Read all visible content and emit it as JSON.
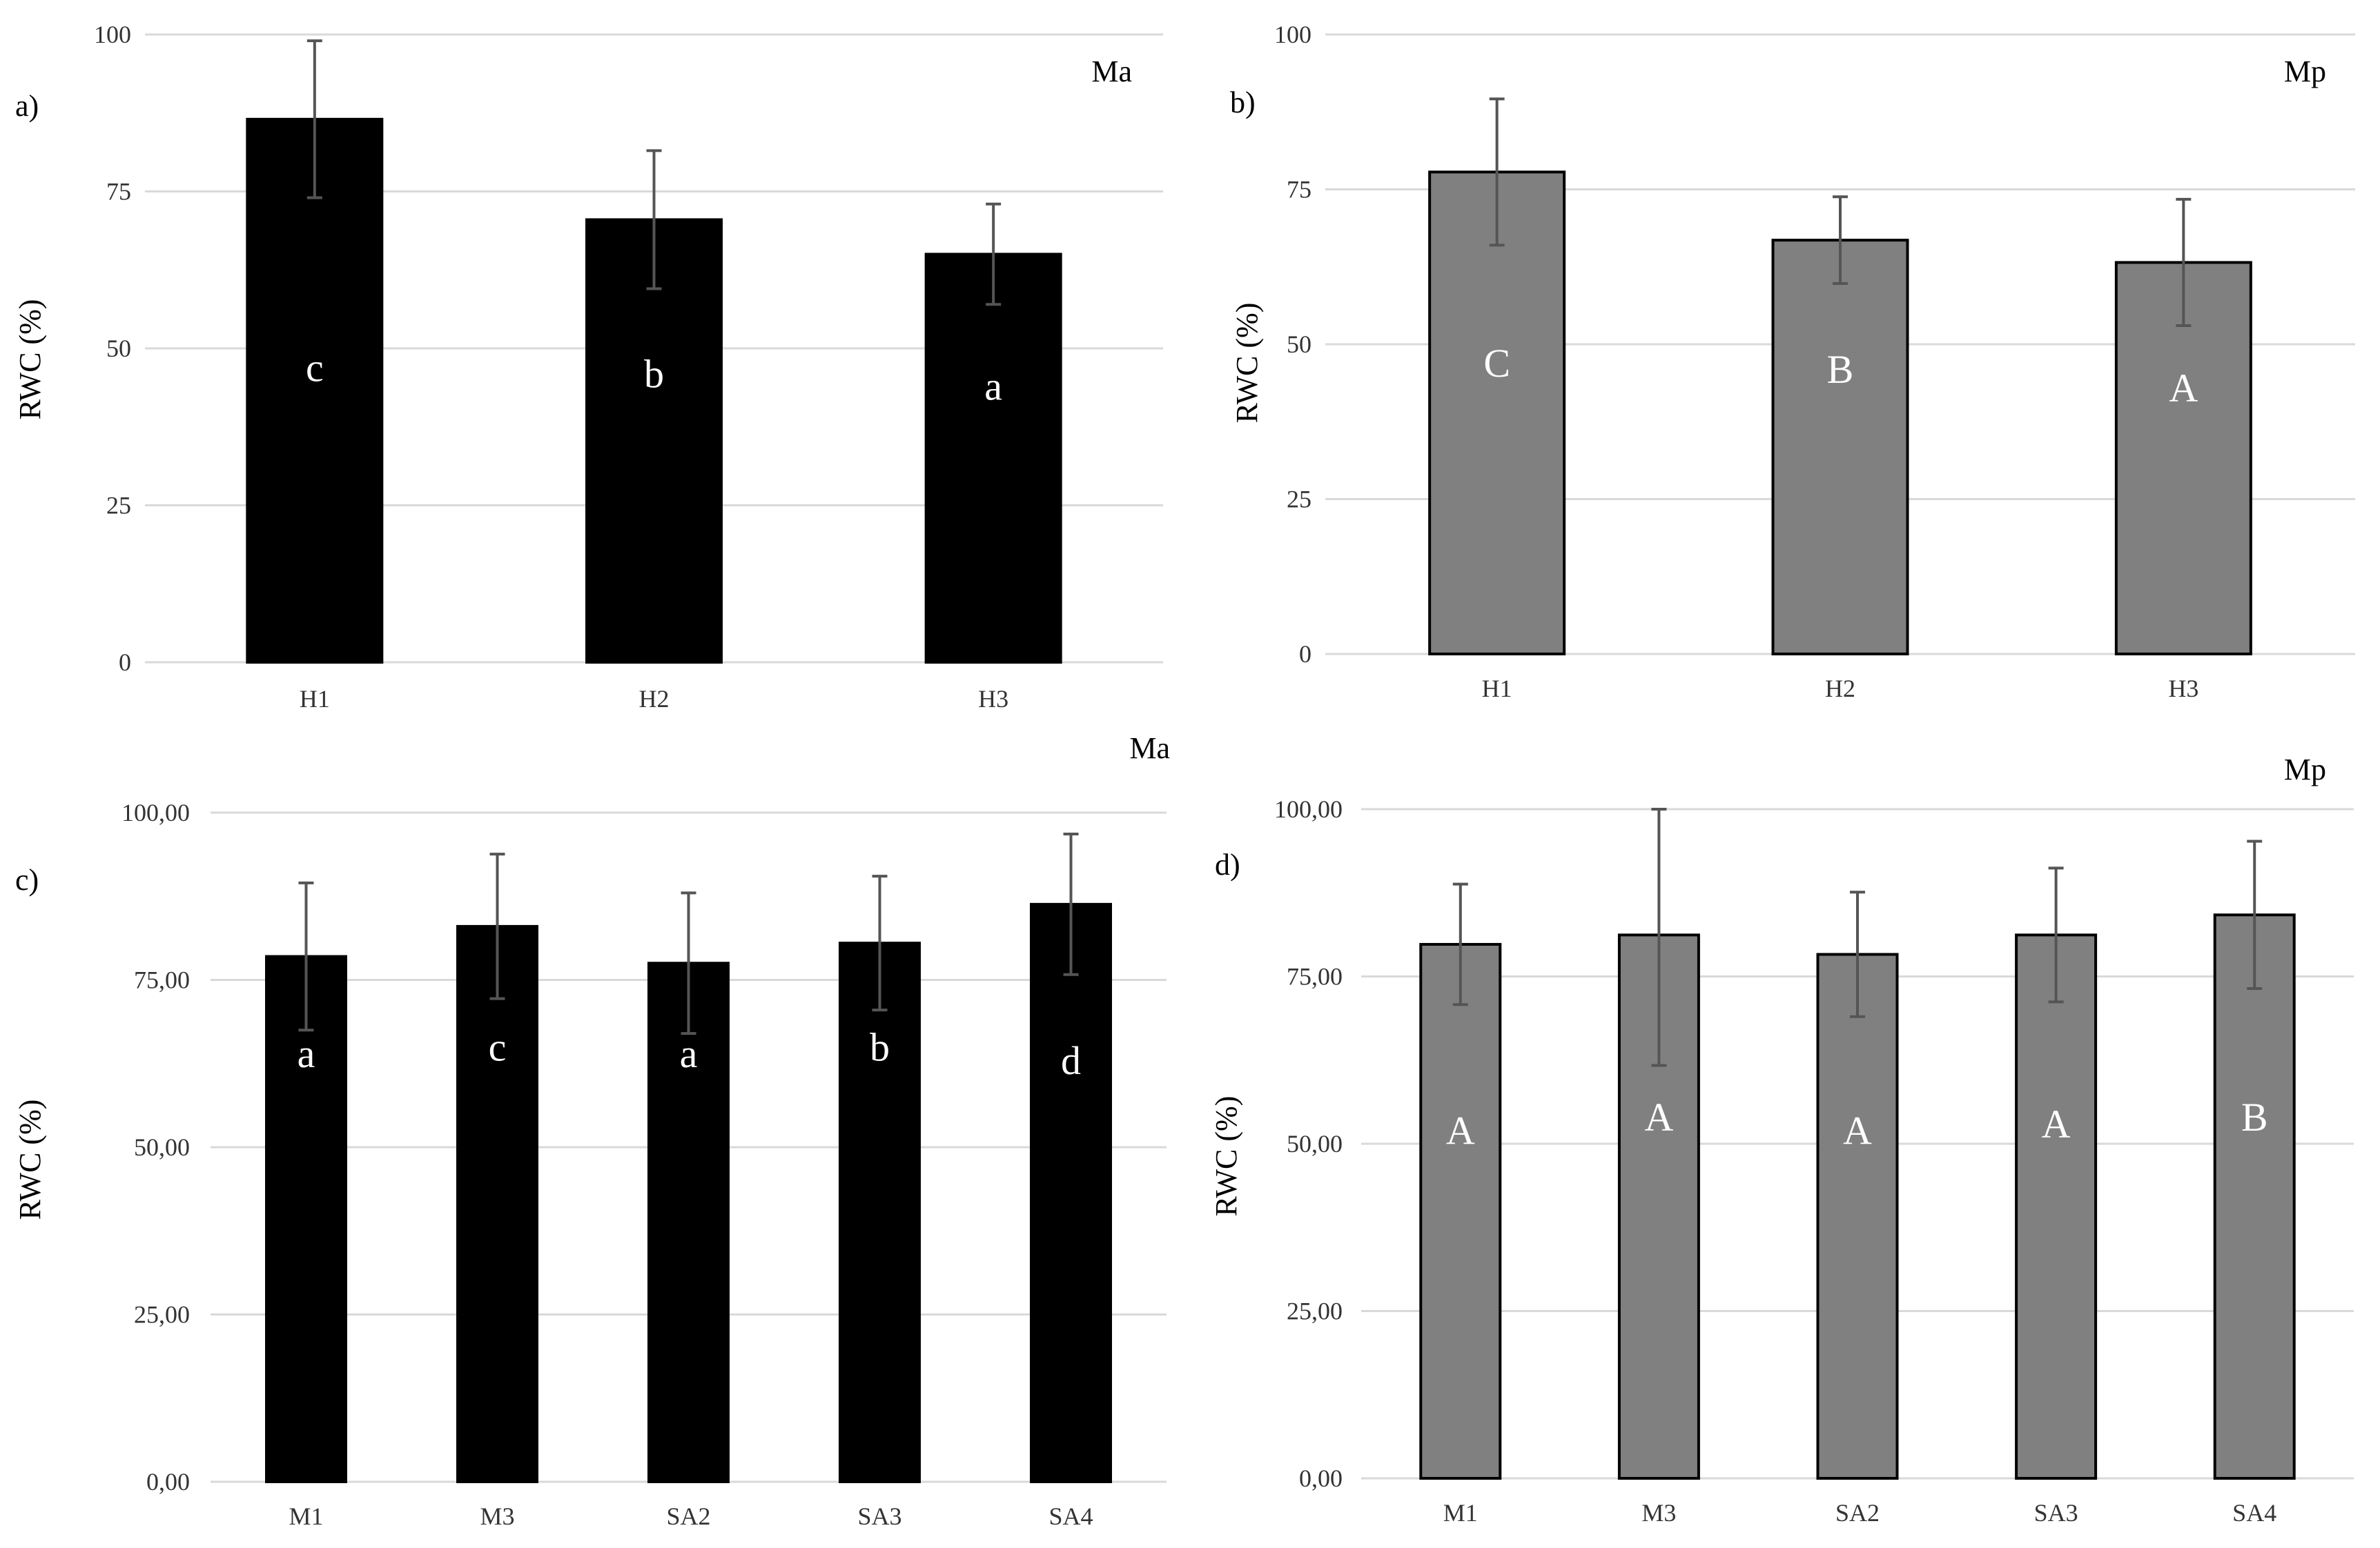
{
  "chart_data": [
    {
      "type": "bar",
      "panel": "a)",
      "species": "Ma",
      "ylabel": "RWC (%)",
      "xlabel": "",
      "ylim": [
        0,
        100
      ],
      "ticks": [
        "0",
        "25",
        "50",
        "75",
        "100"
      ],
      "tick_values": [
        0,
        25,
        50,
        75,
        100
      ],
      "categories": [
        "H1",
        "H2",
        "H3"
      ],
      "values": [
        86.5,
        70.5,
        65
      ],
      "errors": [
        12.5,
        11,
        8
      ],
      "letters": [
        "c",
        "b",
        "a"
      ],
      "letter_values": [
        47,
        46,
        44
      ],
      "bar_color": "#000000",
      "bar_edge": "#000000"
    },
    {
      "type": "bar",
      "panel": "b)",
      "species": "Mp",
      "ylabel": "RWC (%)",
      "xlabel": "",
      "ylim": [
        0,
        100
      ],
      "ticks": [
        "0",
        "25",
        "50",
        "75",
        "100"
      ],
      "tick_values": [
        0,
        25,
        50,
        75,
        100
      ],
      "categories": [
        "H1",
        "H2",
        "H3"
      ],
      "values": [
        77.8,
        66.8,
        63.2
      ],
      "errors": [
        11.8,
        7,
        10.2
      ],
      "letters": [
        "C",
        "B",
        "A"
      ],
      "letter_values": [
        47,
        46,
        43
      ],
      "bar_color": "#808080",
      "bar_edge": "#000000"
    },
    {
      "type": "bar",
      "panel": "c)",
      "species": "Ma",
      "ylabel": "RWC (%)",
      "xlabel": "",
      "ylim": [
        0,
        100
      ],
      "ticks": [
        "0,00",
        "25,00",
        "50,00",
        "75,00",
        "100,00"
      ],
      "tick_values": [
        0,
        25,
        50,
        75,
        100
      ],
      "categories": [
        "M1",
        "M3",
        "SA2",
        "SA3",
        "SA4"
      ],
      "values": [
        78.5,
        83,
        77.5,
        80.5,
        86.3
      ],
      "errors": [
        11,
        10.8,
        10.5,
        10,
        10.5
      ],
      "letters": [
        "a",
        "c",
        "a",
        "b",
        "d"
      ],
      "letter_values": [
        64,
        65,
        64,
        65,
        63
      ],
      "bar_color": "#000000",
      "bar_edge": "#000000"
    },
    {
      "type": "bar",
      "panel": "d)",
      "species": "Mp",
      "ylabel": "RWC (%)",
      "xlabel": "",
      "ylim": [
        0,
        100
      ],
      "ticks": [
        "0,00",
        "25,00",
        "50,00",
        "75,00",
        "100,00"
      ],
      "tick_values": [
        0,
        25,
        50,
        75,
        100
      ],
      "categories": [
        "M1",
        "M3",
        "SA2",
        "SA3",
        "SA4"
      ],
      "values": [
        79.8,
        81.2,
        78.3,
        81.2,
        84.2
      ],
      "errors": [
        9,
        19.5,
        9.3,
        10,
        11
      ],
      "letters": [
        "A",
        "A",
        "A",
        "A",
        "B"
      ],
      "letter_values": [
        52,
        54,
        52,
        53,
        54
      ],
      "bar_color": "#808080",
      "bar_edge": "#000000"
    }
  ]
}
